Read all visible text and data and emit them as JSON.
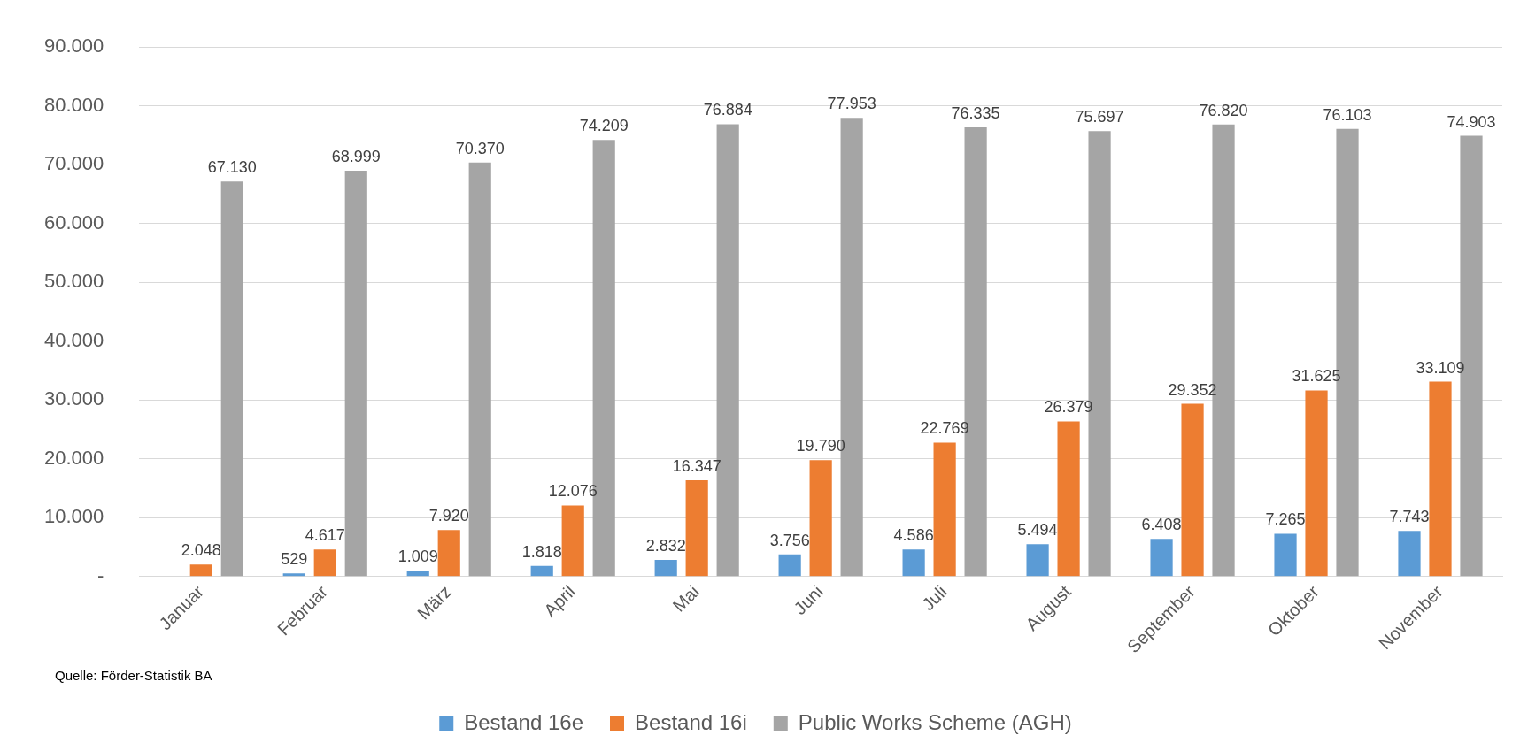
{
  "chart_data": {
    "type": "bar",
    "categories": [
      "Januar",
      "Februar",
      "März",
      "April",
      "Mai",
      "Juni",
      "Juli",
      "August",
      "September",
      "Oktober",
      "November"
    ],
    "series": [
      {
        "name": "Bestand 16e",
        "color": "#5b9bd5",
        "values": [
          null,
          529,
          1009,
          1818,
          2832,
          3756,
          4586,
          5494,
          6408,
          7265,
          7743
        ],
        "value_labels": [
          null,
          "529",
          "1.009",
          "1.818",
          "2.832",
          "3.756",
          "4.586",
          "5.494",
          "6.408",
          "7.265",
          "7.743"
        ]
      },
      {
        "name": "Bestand 16i",
        "color": "#ed7d31",
        "values": [
          2048,
          4617,
          7920,
          12076,
          16347,
          19790,
          22769,
          26379,
          29352,
          31625,
          33109
        ],
        "value_labels": [
          "2.048",
          "4.617",
          "7.920",
          "12.076",
          "16.347",
          "19.790",
          "22.769",
          "26.379",
          "29.352",
          "31.625",
          "33.109"
        ]
      },
      {
        "name": "Public Works Scheme (AGH)",
        "color": "#a5a5a5",
        "values": [
          67130,
          68999,
          70370,
          74209,
          76884,
          77953,
          76335,
          75697,
          76820,
          76103,
          74903
        ],
        "value_labels": [
          "67.130",
          "68.999",
          "70.370",
          "74.209",
          "76.884",
          "77.953",
          "76.335",
          "75.697",
          "76.820",
          "76.103",
          "74.903"
        ]
      }
    ],
    "ylim": [
      0,
      90000
    ],
    "yticks": [
      {
        "value": 0,
        "label": "-"
      },
      {
        "value": 10000,
        "label": "10.000"
      },
      {
        "value": 20000,
        "label": "20.000"
      },
      {
        "value": 30000,
        "label": "30.000"
      },
      {
        "value": 40000,
        "label": "40.000"
      },
      {
        "value": 50000,
        "label": "50.000"
      },
      {
        "value": 60000,
        "label": "60.000"
      },
      {
        "value": 70000,
        "label": "70.000"
      },
      {
        "value": 80000,
        "label": "80.000"
      },
      {
        "value": 90000,
        "label": "90.000"
      }
    ],
    "grid": "y",
    "legend": "bottom",
    "annotations": [
      "Quelle: Förder-Statistik BA"
    ]
  }
}
